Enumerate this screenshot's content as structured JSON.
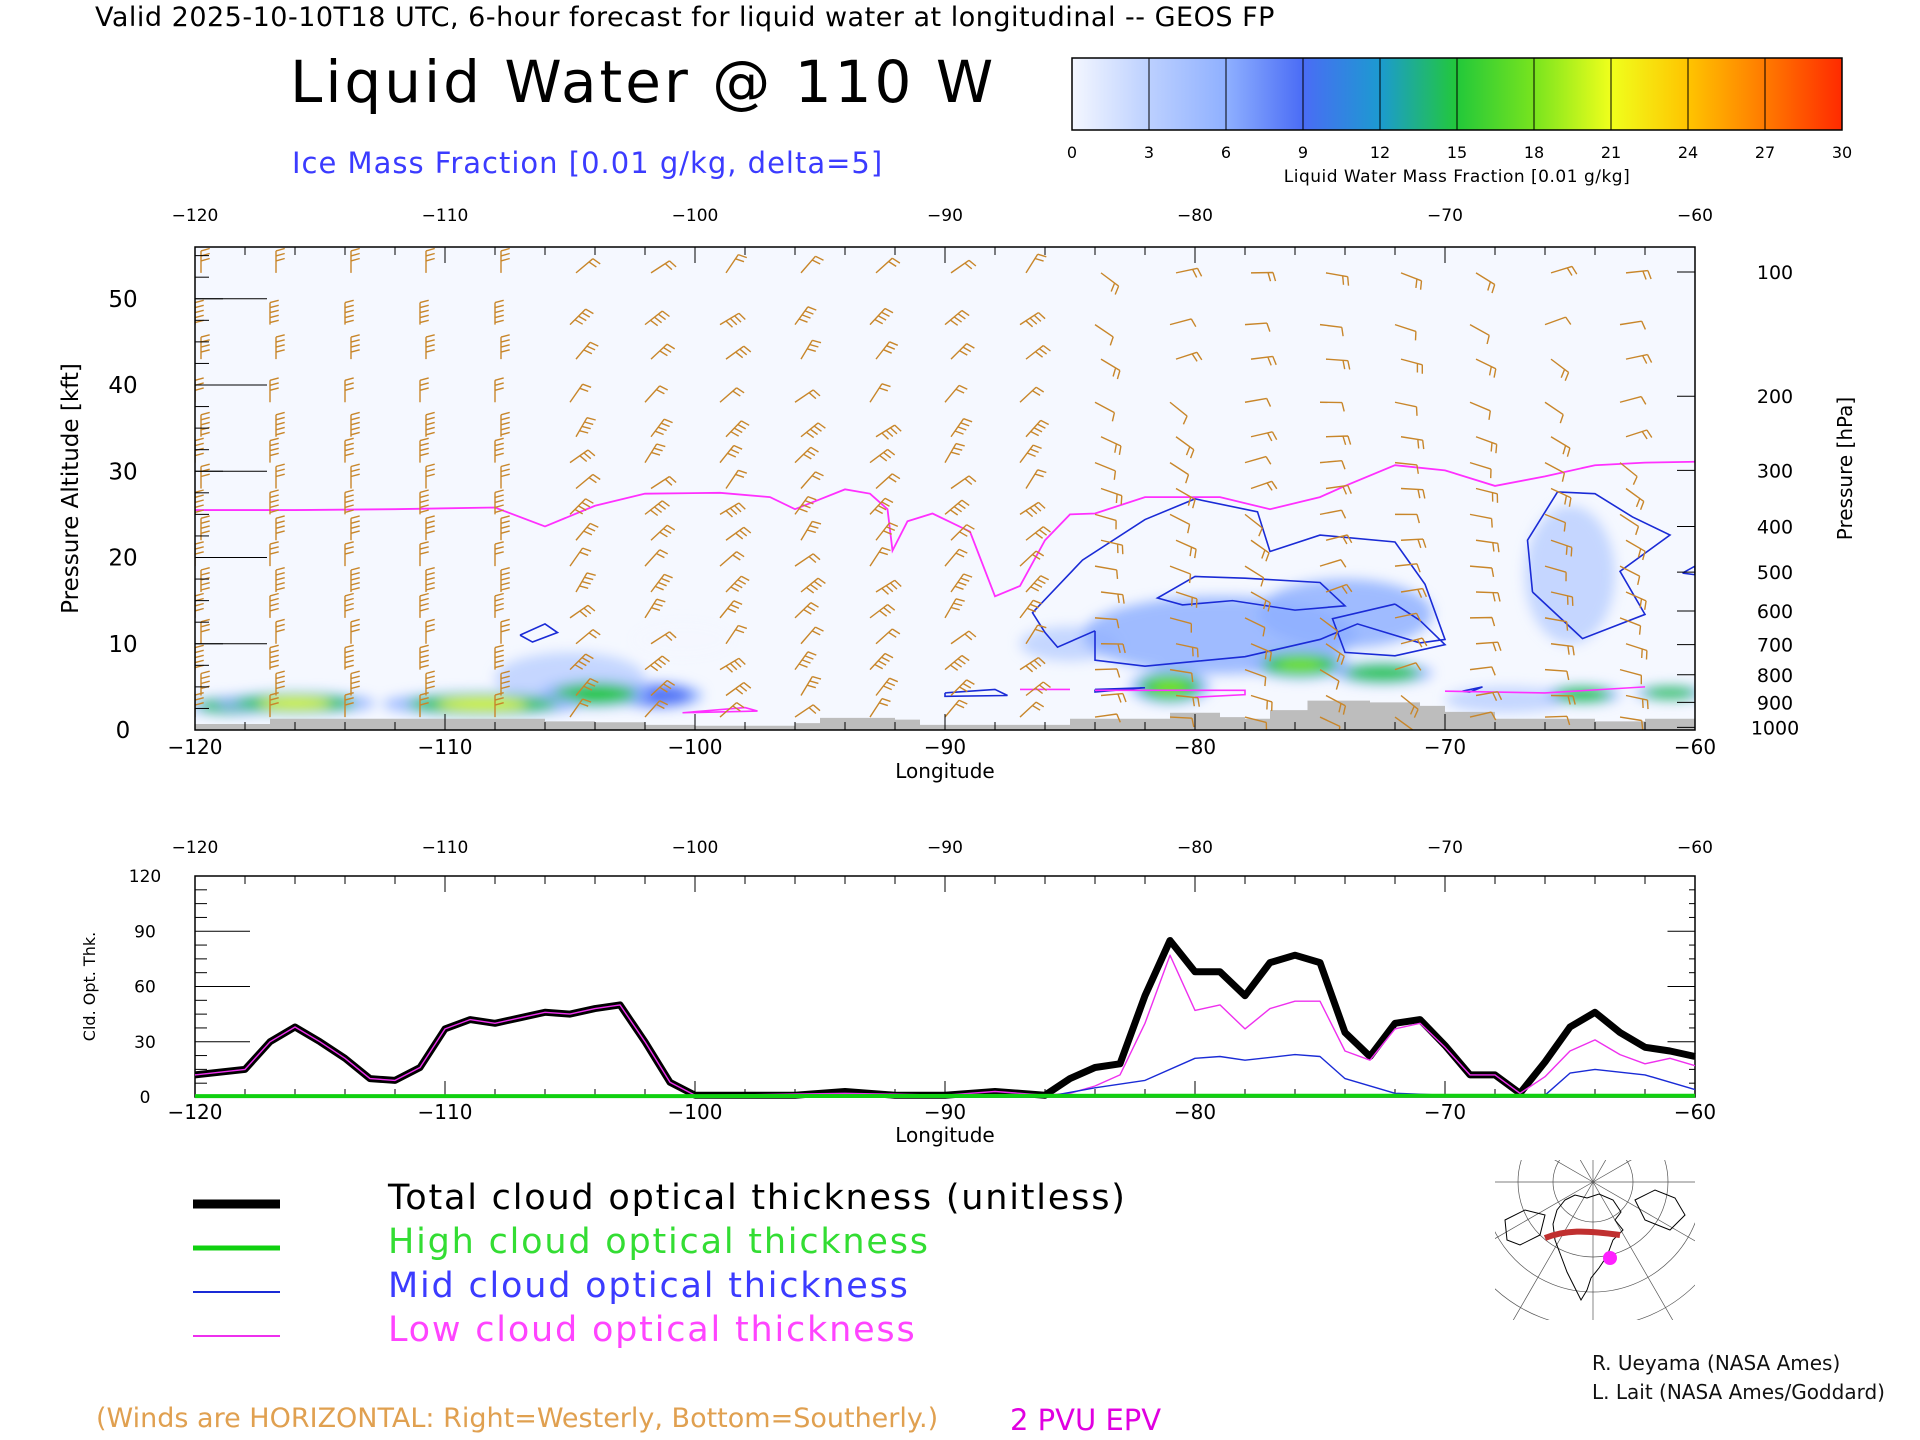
{
  "header": {
    "line": "Valid 2025-10-10T18 UTC, 6-hour forecast for liquid water at longitudinal -- GEOS FP",
    "title": "Liquid Water @ 110 W",
    "ice_label": "Ice Mass Fraction [0.01 g/kg, delta=5]"
  },
  "colorbar": {
    "ticks": [
      "0",
      "3",
      "6",
      "9",
      "12",
      "15",
      "18",
      "21",
      "24",
      "27",
      "30"
    ],
    "label": "Liquid Water Mass Fraction [0.01 g/kg]",
    "colors": [
      "#f4f7ff",
      "#bcd0ff",
      "#8fb0ff",
      "#4a6cf5",
      "#1c9ad0",
      "#22c83a",
      "#78e41e",
      "#f0ff1c",
      "#ffc400",
      "#ff7a00",
      "#ff2a00"
    ]
  },
  "colors": {
    "wind_barbs": "#c8862a",
    "epv": "#ff30ff",
    "ice_contour": "#1a2bd6",
    "terrain": "#bdbdbd",
    "total": "#000000",
    "high": "#10d010",
    "mid": "#1a2bd6",
    "low": "#ee30ee"
  },
  "chart_data": [
    {
      "type": "heatmap",
      "name": "liquid-water-section",
      "xlabel": "Longitude",
      "ylabel": "Pressure Altitude [kft]",
      "y2label": "Pressure [hPa]",
      "xlim": [
        -120,
        -60
      ],
      "ylim": [
        0,
        56
      ],
      "x_ticks": [
        "-120",
        "-110",
        "-100",
        "-90",
        "-80",
        "-70",
        "-60"
      ],
      "y_ticks": [
        "0",
        "10",
        "20",
        "30",
        "40",
        "50"
      ],
      "pressure_ticks": [
        {
          "label": "100",
          "kft": 53.1
        },
        {
          "label": "200",
          "kft": 38.7
        },
        {
          "label": "300",
          "kft": 30.1
        },
        {
          "label": "400",
          "kft": 23.6
        },
        {
          "label": "500",
          "kft": 18.3
        },
        {
          "label": "600",
          "kft": 13.8
        },
        {
          "label": "700",
          "kft": 9.9
        },
        {
          "label": "800",
          "kft": 6.4
        },
        {
          "label": "900",
          "kft": 3.2
        },
        {
          "label": "1000",
          "kft": 0.3
        }
      ],
      "liquid_water_blobs": [
        {
          "lon": -116.0,
          "kft": 3.1,
          "w": 3.2,
          "h": 1.3,
          "value": 22
        },
        {
          "lon": -118.5,
          "kft": 2.8,
          "w": 1.8,
          "h": 1.1,
          "value": 14
        },
        {
          "lon": -108.5,
          "kft": 3.0,
          "w": 4.0,
          "h": 1.4,
          "value": 22
        },
        {
          "lon": -104.0,
          "kft": 4.2,
          "w": 2.2,
          "h": 1.6,
          "value": 16
        },
        {
          "lon": -101.5,
          "kft": 4.0,
          "w": 1.8,
          "h": 1.5,
          "value": 8
        },
        {
          "lon": -81.0,
          "kft": 5.0,
          "w": 1.6,
          "h": 2.0,
          "value": 18
        },
        {
          "lon": -75.8,
          "kft": 7.6,
          "w": 2.0,
          "h": 1.7,
          "value": 17
        },
        {
          "lon": -72.5,
          "kft": 6.6,
          "w": 2.0,
          "h": 1.3,
          "value": 14
        },
        {
          "lon": -64.5,
          "kft": 4.1,
          "w": 1.5,
          "h": 1.1,
          "value": 16
        },
        {
          "lon": -61.0,
          "kft": 4.3,
          "w": 1.4,
          "h": 0.9,
          "value": 14
        },
        {
          "lon": -79.0,
          "kft": 11.0,
          "w": 5.5,
          "h": 4.5,
          "value": 6
        },
        {
          "lon": -74.0,
          "kft": 13.5,
          "w": 3.5,
          "h": 4.0,
          "value": 5
        },
        {
          "lon": -65.0,
          "kft": 18.0,
          "w": 1.8,
          "h": 8.0,
          "value": 3
        },
        {
          "lon": -85.0,
          "kft": 10.0,
          "w": 2.0,
          "h": 2.0,
          "value": 4
        },
        {
          "lon": -105.0,
          "kft": 6.0,
          "w": 3.0,
          "h": 3.0,
          "value": 2
        },
        {
          "lon": -100.5,
          "kft": 10.5,
          "w": 2.0,
          "h": 2.0,
          "value": 1
        },
        {
          "lon": -67.5,
          "kft": 3.5,
          "w": 2.5,
          "h": 1.5,
          "value": 4
        }
      ],
      "epv_2pvu_line": [
        [
          -120,
          25.5
        ],
        [
          -116,
          25.5
        ],
        [
          -112,
          25.6
        ],
        [
          -108,
          25.8
        ],
        [
          -106,
          23.6
        ],
        [
          -104,
          26.0
        ],
        [
          -102,
          27.4
        ],
        [
          -99,
          27.5
        ],
        [
          -97,
          27.0
        ],
        [
          -96,
          25.6
        ],
        [
          -94,
          27.9
        ],
        [
          -93,
          27.4
        ],
        [
          -92.3,
          25.6
        ],
        [
          -92.1,
          20.8
        ],
        [
          -91.5,
          24.2
        ],
        [
          -90.5,
          25.1
        ],
        [
          -89,
          23.0
        ],
        [
          -88,
          15.5
        ],
        [
          -87,
          16.7
        ],
        [
          -86,
          22.0
        ],
        [
          -85,
          25.0
        ],
        [
          -84,
          25.1
        ],
        [
          -82,
          27.0
        ],
        [
          -79,
          27.0
        ],
        [
          -77,
          25.6
        ],
        [
          -75,
          27.0
        ],
        [
          -74,
          28.3
        ],
        [
          -72,
          30.7
        ],
        [
          -70,
          30.1
        ],
        [
          -68,
          28.3
        ],
        [
          -66,
          29.4
        ],
        [
          -64,
          30.7
        ],
        [
          -62,
          31.0
        ],
        [
          -60,
          31.1
        ]
      ],
      "ice_contours": [
        [
          [
            -84,
            11.5
          ],
          [
            -85.5,
            9.6
          ],
          [
            -86,
            11.3
          ],
          [
            -86.5,
            13.6
          ],
          [
            -84.5,
            19.7
          ],
          [
            -82,
            24.4
          ],
          [
            -80,
            26.8
          ],
          [
            -77.5,
            25.3
          ],
          [
            -77,
            20.7
          ],
          [
            -75,
            22.6
          ],
          [
            -72,
            21.8
          ],
          [
            -70.8,
            16.9
          ],
          [
            -70,
            10.5
          ],
          [
            -71,
            10.1
          ],
          [
            -73.5,
            12.3
          ],
          [
            -75,
            10.5
          ],
          [
            -78,
            8.5
          ],
          [
            -82,
            7.4
          ],
          [
            -84,
            8.1
          ],
          [
            -84,
            11.5
          ]
        ],
        [
          [
            -78,
            17.6
          ],
          [
            -75,
            17.1
          ],
          [
            -74,
            14.4
          ],
          [
            -76,
            13.9
          ],
          [
            -78.5,
            15.0
          ],
          [
            -80.5,
            14.5
          ],
          [
            -81.5,
            15.3
          ],
          [
            -80,
            17.8
          ],
          [
            -78,
            17.6
          ]
        ],
        [
          [
            -72,
            14.6
          ],
          [
            -71,
            12.7
          ],
          [
            -70,
            9.9
          ],
          [
            -72,
            8.6
          ],
          [
            -74,
            9.0
          ],
          [
            -74.5,
            12.9
          ],
          [
            -72,
            14.6
          ]
        ],
        [
          [
            -66.5,
            16.0
          ],
          [
            -66.7,
            22.0
          ],
          [
            -65.5,
            27.6
          ],
          [
            -64,
            27.4
          ],
          [
            -62.5,
            24.7
          ],
          [
            -61,
            22.6
          ],
          [
            -63,
            18.4
          ],
          [
            -62,
            13.4
          ],
          [
            -64.5,
            10.6
          ],
          [
            -66.5,
            16.0
          ]
        ],
        [
          [
            -107,
            11.0
          ],
          [
            -106,
            12.3
          ],
          [
            -105.5,
            11.3
          ],
          [
            -106.5,
            10.2
          ],
          [
            -107,
            11.0
          ]
        ],
        [
          [
            -90,
            4.3
          ],
          [
            -88,
            4.7
          ],
          [
            -87.5,
            4.0
          ],
          [
            -90,
            3.9
          ],
          [
            -90,
            4.3
          ]
        ],
        [
          [
            -84,
            4.7
          ],
          [
            -82,
            4.9
          ],
          [
            -84,
            4.4
          ],
          [
            -84,
            4.7
          ]
        ],
        [
          [
            -69,
            4.4
          ],
          [
            -68.5,
            5.0
          ],
          [
            -69.3,
            4.5
          ],
          [
            -69,
            4.4
          ]
        ],
        [
          [
            -60.5,
            18.2
          ],
          [
            -60,
            19.0
          ],
          [
            -60,
            18.0
          ],
          [
            -60.5,
            18.2
          ]
        ]
      ],
      "terrain": [
        [
          -120,
          0.7
        ],
        [
          -117,
          1.3
        ],
        [
          -112,
          1.3
        ],
        [
          -106,
          1.0
        ],
        [
          -104,
          0.9
        ],
        [
          -102,
          0.6
        ],
        [
          -100,
          0.5
        ],
        [
          -96,
          0.8
        ],
        [
          -95,
          1.4
        ],
        [
          -92,
          1.2
        ],
        [
          -91,
          0.6
        ],
        [
          -86,
          0.6
        ],
        [
          -85,
          1.3
        ],
        [
          -82,
          1.3
        ],
        [
          -81,
          2.0
        ],
        [
          -79,
          1.5
        ],
        [
          -78,
          1.3
        ],
        [
          -77,
          2.3
        ],
        [
          -75.5,
          3.4
        ],
        [
          -73,
          3.2
        ],
        [
          -71,
          2.8
        ],
        [
          -70,
          2.1
        ],
        [
          -68,
          1.3
        ],
        [
          -66,
          1.3
        ],
        [
          -64,
          1.0
        ],
        [
          -62,
          1.3
        ],
        [
          -60,
          1.3
        ]
      ]
    },
    {
      "type": "line",
      "name": "cloud-optical-thickness",
      "xlabel": "Longitude",
      "ylabel": "Cld. Opt. Thk.",
      "xlim": [
        -120,
        -60
      ],
      "ylim": [
        0,
        120
      ],
      "x_ticks": [
        "-120",
        "-110",
        "-100",
        "-90",
        "-80",
        "-70",
        "-60"
      ],
      "y_ticks": [
        "0",
        "30",
        "60",
        "90",
        "120"
      ],
      "series": [
        {
          "name": "Total cloud optical thickness (unitless)",
          "key": "total",
          "x": [
            -120,
            -118,
            -117,
            -116,
            -115,
            -114,
            -113,
            -112,
            -111,
            -110,
            -109,
            -108,
            -107,
            -106,
            -105,
            -104,
            -103,
            -102,
            -101,
            -100,
            -99,
            -96,
            -94,
            -92,
            -90,
            -88,
            -86,
            -85,
            -84,
            -83,
            -82,
            -81,
            -80,
            -79,
            -78,
            -77,
            -76,
            -75,
            -74,
            -73,
            -72,
            -71,
            -70,
            -69,
            -68,
            -67,
            -66,
            -65,
            -64,
            -63,
            -62,
            -61,
            -60
          ],
          "values": [
            12,
            15,
            30,
            38,
            30,
            21,
            10,
            9,
            16,
            37,
            42,
            40,
            43,
            46,
            45,
            48,
            50,
            30,
            8,
            1,
            1,
            1,
            3,
            1,
            1,
            3,
            1,
            10,
            16,
            18,
            55,
            85,
            68,
            68,
            55,
            73,
            77,
            73,
            35,
            22,
            40,
            42,
            28,
            12,
            12,
            2,
            19,
            38,
            46,
            35,
            27,
            25,
            22
          ]
        },
        {
          "name": "High cloud optical thickness",
          "key": "high",
          "x": [
            -120,
            -100,
            -80,
            -60
          ],
          "values": [
            0.5,
            0.5,
            0.7,
            0.7
          ]
        },
        {
          "name": "Mid cloud optical thickness",
          "key": "mid",
          "x": [
            -120,
            -110,
            -106,
            -100,
            -86,
            -84,
            -82,
            -80,
            -79,
            -78,
            -76,
            -75,
            -74,
            -72,
            -70,
            -68,
            -66,
            -65,
            -64,
            -62,
            -60
          ],
          "values": [
            0,
            0,
            1,
            0,
            0,
            5,
            9,
            21,
            22,
            20,
            23,
            22,
            10,
            2,
            1,
            0,
            1,
            13,
            15,
            12,
            4
          ]
        },
        {
          "name": "Low cloud optical thickness",
          "key": "low",
          "x": [
            -120,
            -118,
            -117,
            -116,
            -115,
            -114,
            -113,
            -112,
            -111,
            -110,
            -109,
            -108,
            -107,
            -106,
            -105,
            -104,
            -103,
            -102,
            -101,
            -100,
            -99,
            -94,
            -90,
            -88,
            -86,
            -85,
            -84,
            -83,
            -82,
            -81,
            -80,
            -79,
            -78,
            -77,
            -76,
            -75,
            -74,
            -73,
            -72,
            -71,
            -70,
            -69,
            -68,
            -67,
            -66,
            -65,
            -64,
            -63,
            -62,
            -61,
            -60
          ],
          "values": [
            12,
            15,
            30,
            38,
            30,
            21,
            10,
            9,
            16,
            37,
            42,
            40,
            43,
            46,
            45,
            48,
            50,
            30,
            8,
            1,
            1,
            2,
            1,
            3,
            1,
            2,
            6,
            12,
            40,
            77,
            47,
            50,
            37,
            48,
            52,
            52,
            25,
            20,
            37,
            40,
            27,
            12,
            12,
            2,
            11,
            25,
            31,
            23,
            18,
            21,
            17
          ]
        }
      ]
    }
  ],
  "legend": {
    "total": "Total cloud optical thickness (unitless)",
    "high": "High cloud optical thickness",
    "mid": "Mid cloud optical thickness",
    "low": "Low cloud optical thickness"
  },
  "map": {
    "lon": -62,
    "lat": 44
  },
  "footer": {
    "winds_note": "(Winds are HORIZONTAL: Right=Westerly, Bottom=Southerly.)",
    "epv_label": "2 PVU EPV",
    "credit_1": "R. Ueyama (NASA Ames)",
    "credit_2": "L. Lait (NASA Ames/Goddard)"
  }
}
